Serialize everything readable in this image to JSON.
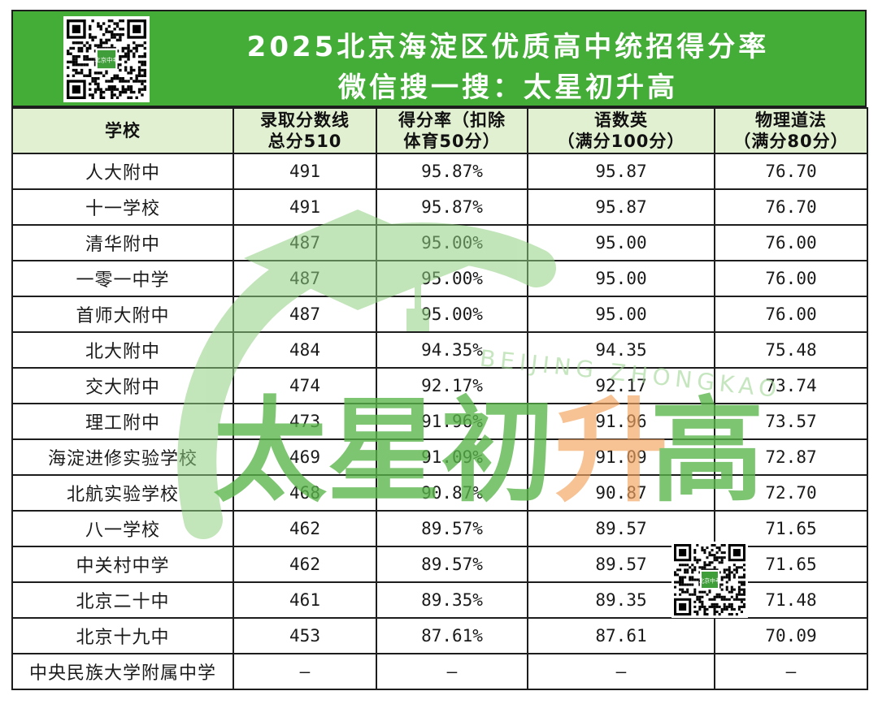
{
  "header": {
    "title": "2025北京海淀区优质高中统招得分率",
    "subtitle": "微信搜一搜：太星初升高"
  },
  "columns": [
    {
      "line1": "学校",
      "line2": ""
    },
    {
      "line1": "录取分数线",
      "line2": "总分510"
    },
    {
      "line1": "得分率（扣除",
      "line2": "体育50分）"
    },
    {
      "line1": "语数英",
      "line2": "（满分100分）"
    },
    {
      "line1": "物理道法",
      "line2": "（满分80分）"
    }
  ],
  "rows": [
    {
      "school": "人大附中",
      "score": "491",
      "rate": "95.87%",
      "ysy": "95.87",
      "wldf": "76.70"
    },
    {
      "school": "十一学校",
      "score": "491",
      "rate": "95.87%",
      "ysy": "95.87",
      "wldf": "76.70"
    },
    {
      "school": "清华附中",
      "score": "487",
      "rate": "95.00%",
      "ysy": "95.00",
      "wldf": "76.00"
    },
    {
      "school": "一零一中学",
      "score": "487",
      "rate": "95.00%",
      "ysy": "95.00",
      "wldf": "76.00"
    },
    {
      "school": "首师大附中",
      "score": "487",
      "rate": "95.00%",
      "ysy": "95.00",
      "wldf": "76.00"
    },
    {
      "school": "北大附中",
      "score": "484",
      "rate": "94.35%",
      "ysy": "94.35",
      "wldf": "75.48"
    },
    {
      "school": "交大附中",
      "score": "474",
      "rate": "92.17%",
      "ysy": "92.17",
      "wldf": "73.74"
    },
    {
      "school": "理工附中",
      "score": "473",
      "rate": "91.96%",
      "ysy": "91.96",
      "wldf": "73.57"
    },
    {
      "school": "海淀进修实验学校",
      "score": "469",
      "rate": "91.09%",
      "ysy": "91.09",
      "wldf": "72.87"
    },
    {
      "school": "北航实验学校",
      "score": "468",
      "rate": "90.87%",
      "ysy": "90.87",
      "wldf": "72.70"
    },
    {
      "school": "八一学校",
      "score": "462",
      "rate": "89.57%",
      "ysy": "89.57",
      "wldf": "71.65"
    },
    {
      "school": "中关村中学",
      "score": "462",
      "rate": "89.57%",
      "ysy": "89.57",
      "wldf": "71.65"
    },
    {
      "school": "北京二十中",
      "score": "461",
      "rate": "89.35%",
      "ysy": "89.35",
      "wldf": "71.48"
    },
    {
      "school": "北京十九中",
      "score": "453",
      "rate": "87.61%",
      "ysy": "87.61",
      "wldf": "70.09"
    },
    {
      "school": "中央民族大学附属中学",
      "score": "–",
      "rate": "–",
      "ysy": "–",
      "wldf": "–"
    }
  ],
  "watermark": {
    "brand_green": "太星初",
    "brand_orange": "升",
    "brand_green_end": "高",
    "arc_text": "BEIJING ZHONGKAO"
  },
  "qr_badge": "北京中考",
  "colors": {
    "banner_green": "#44ad37",
    "header_fill": "#e2f0d2",
    "border": "#1d1d1d",
    "watermark_green": "#5ab54b",
    "watermark_orange": "#f4a460"
  },
  "icons": [
    "qr-code-icon",
    "graduation-cap-icon"
  ]
}
